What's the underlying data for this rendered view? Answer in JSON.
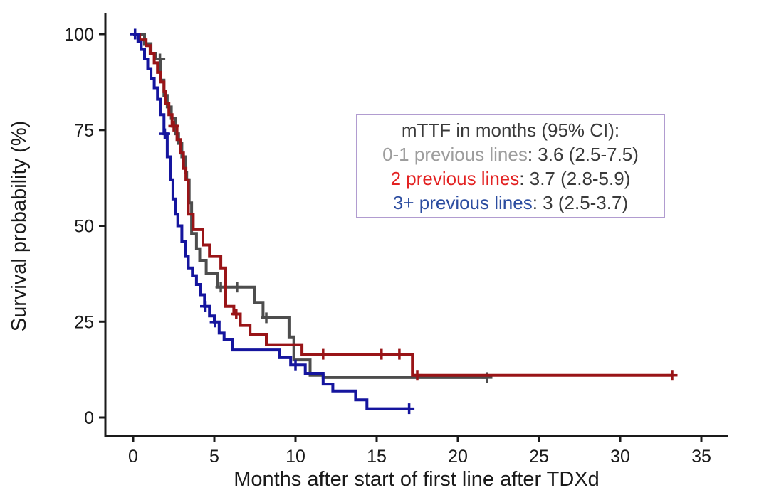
{
  "chart_data": {
    "type": "line",
    "subtype": "kaplan-meier-step",
    "title": "",
    "xlabel": "Months after start of first line after TDXd",
    "ylabel": "Survival probability (%)",
    "xlim": [
      0,
      35
    ],
    "ylim": [
      0,
      100
    ],
    "xticks": [
      0,
      5,
      10,
      15,
      20,
      25,
      30,
      35
    ],
    "yticks": [
      0,
      25,
      50,
      75,
      100
    ],
    "grid": false,
    "axis_color": "#1a1a1a",
    "series": [
      {
        "name": "0-1 previous lines",
        "color": "#4d4d4d",
        "median_months": 3.6,
        "ci_95": "2.5-7.5",
        "steps": [
          [
            0,
            100
          ],
          [
            0.7,
            97.5
          ],
          [
            1.1,
            95
          ],
          [
            1.4,
            93.5
          ],
          [
            1.7,
            88
          ],
          [
            1.9,
            84
          ],
          [
            2.1,
            81
          ],
          [
            2.35,
            78
          ],
          [
            2.6,
            74
          ],
          [
            2.8,
            71.5
          ],
          [
            3.0,
            68
          ],
          [
            3.2,
            64
          ],
          [
            3.3,
            62
          ],
          [
            3.45,
            56
          ],
          [
            3.6,
            48
          ],
          [
            3.9,
            44
          ],
          [
            4.1,
            41
          ],
          [
            4.5,
            37.5
          ],
          [
            5.2,
            34
          ],
          [
            7.5,
            30
          ],
          [
            8.0,
            26
          ],
          [
            9.6,
            21
          ],
          [
            9.9,
            15
          ],
          [
            10.9,
            11
          ],
          [
            11.7,
            10.4
          ]
        ],
        "end_time": 21.8,
        "censor_marks": [
          [
            1.65,
            93.5
          ],
          [
            5.4,
            34
          ],
          [
            6.4,
            34
          ],
          [
            8.2,
            26
          ],
          [
            21.8,
            10.4
          ]
        ]
      },
      {
        "name": "2 previous lines",
        "color": "#991417",
        "median_months": 3.7,
        "ci_95": "2.8-5.9",
        "steps": [
          [
            0,
            100
          ],
          [
            0.4,
            98.5
          ],
          [
            0.8,
            97
          ],
          [
            1.05,
            95
          ],
          [
            1.3,
            92.5
          ],
          [
            1.5,
            90
          ],
          [
            1.7,
            87.5
          ],
          [
            1.9,
            85
          ],
          [
            2.0,
            82
          ],
          [
            2.2,
            79
          ],
          [
            2.4,
            76
          ],
          [
            2.7,
            72.5
          ],
          [
            2.9,
            69
          ],
          [
            3.1,
            65
          ],
          [
            3.25,
            62
          ],
          [
            3.4,
            53
          ],
          [
            3.7,
            49
          ],
          [
            4.3,
            45
          ],
          [
            4.7,
            42
          ],
          [
            5.4,
            39
          ],
          [
            5.7,
            29
          ],
          [
            6.2,
            27
          ],
          [
            6.6,
            24
          ],
          [
            7.2,
            21.7
          ],
          [
            8.2,
            19
          ],
          [
            10.4,
            16.5
          ],
          [
            17.2,
            11
          ]
        ],
        "end_time": 33.2,
        "censor_marks": [
          [
            2.5,
            76
          ],
          [
            6.35,
            27
          ],
          [
            11.7,
            16.5
          ],
          [
            15.3,
            16.5
          ],
          [
            16.4,
            16.5
          ],
          [
            17.5,
            11
          ],
          [
            33.2,
            11
          ]
        ]
      },
      {
        "name": "3+ previous lines",
        "color": "#15159e",
        "median_months": 3,
        "ci_95": "2.5-3.7",
        "steps": [
          [
            0,
            100
          ],
          [
            0.3,
            98
          ],
          [
            0.5,
            96
          ],
          [
            0.7,
            93.5
          ],
          [
            0.9,
            91
          ],
          [
            1.1,
            88.5
          ],
          [
            1.3,
            86
          ],
          [
            1.5,
            83
          ],
          [
            1.7,
            79
          ],
          [
            1.9,
            74
          ],
          [
            2.1,
            68
          ],
          [
            2.3,
            62
          ],
          [
            2.45,
            57
          ],
          [
            2.6,
            53
          ],
          [
            2.75,
            50
          ],
          [
            3.0,
            46
          ],
          [
            3.2,
            42
          ],
          [
            3.4,
            39
          ],
          [
            3.65,
            37
          ],
          [
            3.9,
            34.7
          ],
          [
            4.15,
            32
          ],
          [
            4.4,
            29
          ],
          [
            4.7,
            26.5
          ],
          [
            5.0,
            24.9
          ],
          [
            5.3,
            22
          ],
          [
            5.6,
            20.4
          ],
          [
            6.1,
            17.6
          ],
          [
            9.0,
            15.6
          ],
          [
            9.7,
            13.7
          ],
          [
            10.6,
            11.5
          ],
          [
            11.7,
            8.7
          ],
          [
            12.3,
            6.9
          ],
          [
            13.7,
            4.6
          ],
          [
            14.4,
            2.3
          ]
        ],
        "end_time": 17.0,
        "censor_marks": [
          [
            0.12,
            100
          ],
          [
            1.95,
            74
          ],
          [
            4.45,
            29
          ],
          [
            5.05,
            24.9
          ],
          [
            10.0,
            13.7
          ],
          [
            17.0,
            2.3
          ]
        ]
      }
    ]
  },
  "legend": {
    "border_color": "#b19cd0",
    "header": "mTTF in months (95% CI):",
    "header_color": "#3a3a3a",
    "value_color": "#3a3a3a",
    "entries": [
      {
        "label": "0-1 previous lines",
        "value": ": 3.6 (2.5-7.5)",
        "color": "#9d9d9d"
      },
      {
        "label": "2 previous lines",
        "value": ": 3.7 (2.8-5.9)",
        "color": "#e32222"
      },
      {
        "label": "3+ previous lines",
        "value": ": 3 (2.5-3.7)",
        "color": "#2c4da0"
      }
    ]
  }
}
